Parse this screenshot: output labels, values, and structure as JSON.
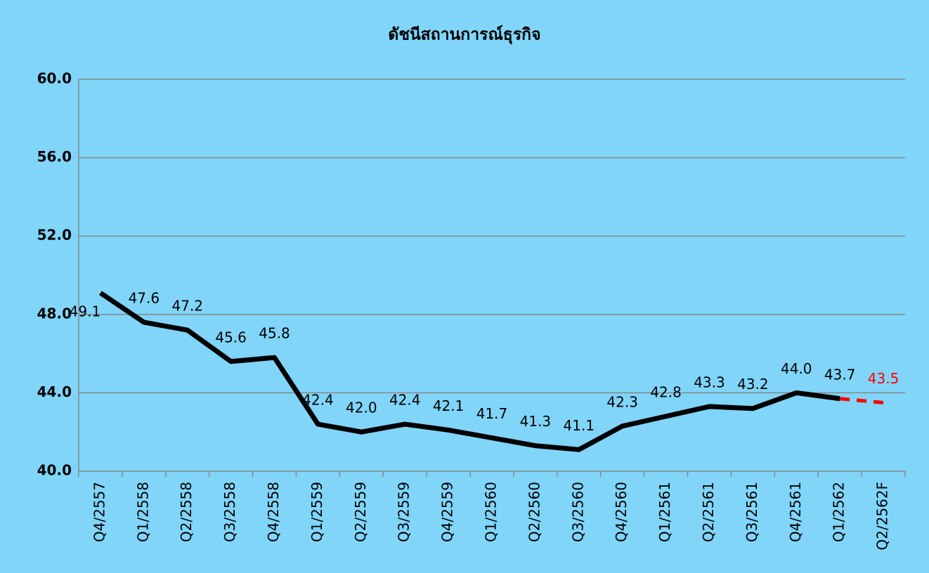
{
  "chart_data": {
    "type": "line",
    "title": "ดัชนีสถานการณ์ธุรกิจ",
    "categories": [
      "Q4/2557",
      "Q1/2558",
      "Q2/2558",
      "Q3/2558",
      "Q4/2558",
      "Q1/2559",
      "Q2/2559",
      "Q3/2559",
      "Q4/2559",
      "Q1/2560",
      "Q2/2560",
      "Q3/2560",
      "Q4/2560",
      "Q1/2561",
      "Q2/2561",
      "Q3/2561",
      "Q4/2561",
      "Q1/2562",
      "Q2/2562F"
    ],
    "series": [
      {
        "color": "#000000",
        "style": "solid",
        "label_color": "#000000",
        "values": [
          49.1,
          47.6,
          47.2,
          45.6,
          45.8,
          42.4,
          42.0,
          42.4,
          42.1,
          41.7,
          41.3,
          41.1,
          42.3,
          42.8,
          43.3,
          43.2,
          44.0,
          43.7,
          null
        ],
        "value_labels": [
          "49.1",
          "47.6",
          "47.2",
          "45.6",
          "45.8",
          "42.4",
          "42.0",
          "42.4",
          "42.1",
          "41.7",
          "41.3",
          "41.1",
          "42.3",
          "42.8",
          "43.3",
          "43.2",
          "44.0",
          "43.7",
          null
        ]
      },
      {
        "color": "#ff0000",
        "style": "dashed",
        "label_color": "#ff0000",
        "values": [
          null,
          null,
          null,
          null,
          null,
          null,
          null,
          null,
          null,
          null,
          null,
          null,
          null,
          null,
          null,
          null,
          null,
          43.7,
          43.5
        ],
        "value_labels": [
          null,
          null,
          null,
          null,
          null,
          null,
          null,
          null,
          null,
          null,
          null,
          null,
          null,
          null,
          null,
          null,
          null,
          null,
          "43.5"
        ]
      }
    ],
    "ylim": [
      40,
      60
    ],
    "yticks": [
      {
        "value": 40,
        "label": "40.0"
      },
      {
        "value": 44,
        "label": "44.0"
      },
      {
        "value": 48,
        "label": "48.0"
      },
      {
        "value": 52,
        "label": "52.0"
      },
      {
        "value": 56,
        "label": "56.0"
      },
      {
        "value": 60,
        "label": "60.0"
      }
    ],
    "grid": true
  }
}
